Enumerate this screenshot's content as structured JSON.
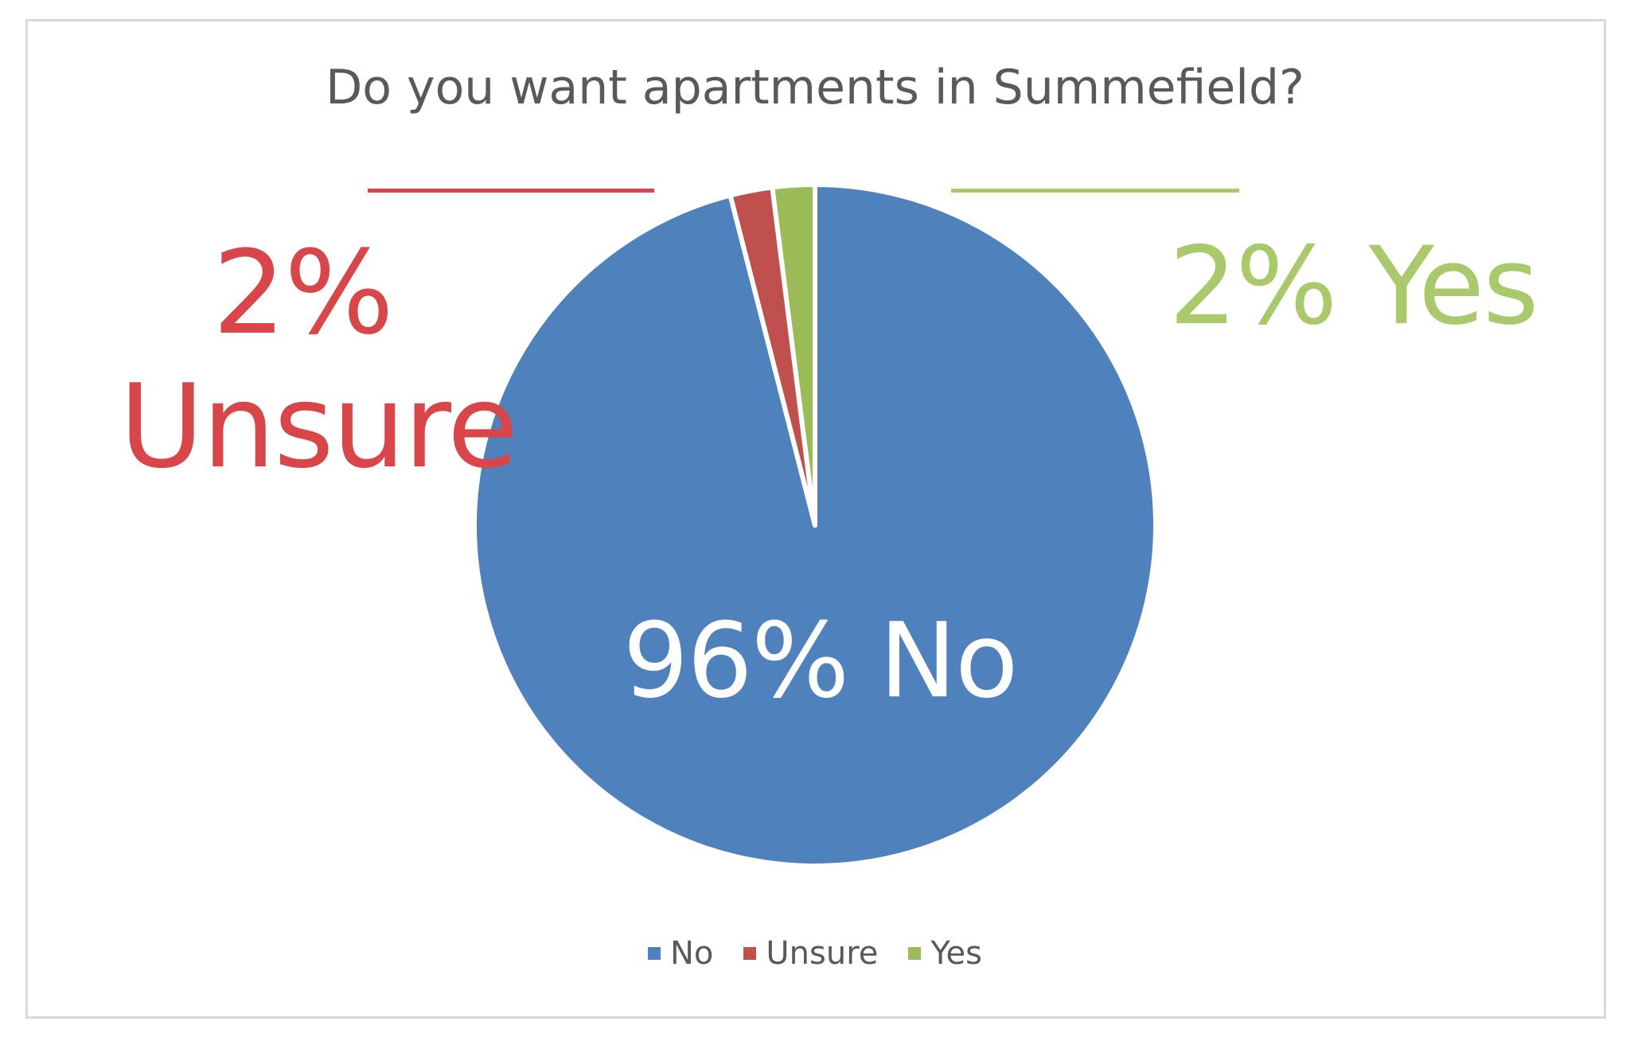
{
  "chart_data": {
    "type": "pie",
    "title": "Do you want apartments in Summefield?",
    "slices": [
      {
        "name": "No",
        "value": 96,
        "color": "#4f81bd"
      },
      {
        "name": "Unsure",
        "value": 2,
        "color": "#c0504d"
      },
      {
        "name": "Yes",
        "value": 2,
        "color": "#9bbb59"
      }
    ],
    "data_labels": {
      "no": "96% No",
      "unsure_pct": "2%",
      "unsure_name": "Unsure",
      "yes": "2% Yes"
    },
    "label_colors": {
      "unsure": "#d9464a",
      "yes": "#a9c96a",
      "no": "#ffffff"
    },
    "legend": {
      "placement": "bottom",
      "entries": [
        "No",
        "Unsure",
        "Yes"
      ]
    }
  }
}
